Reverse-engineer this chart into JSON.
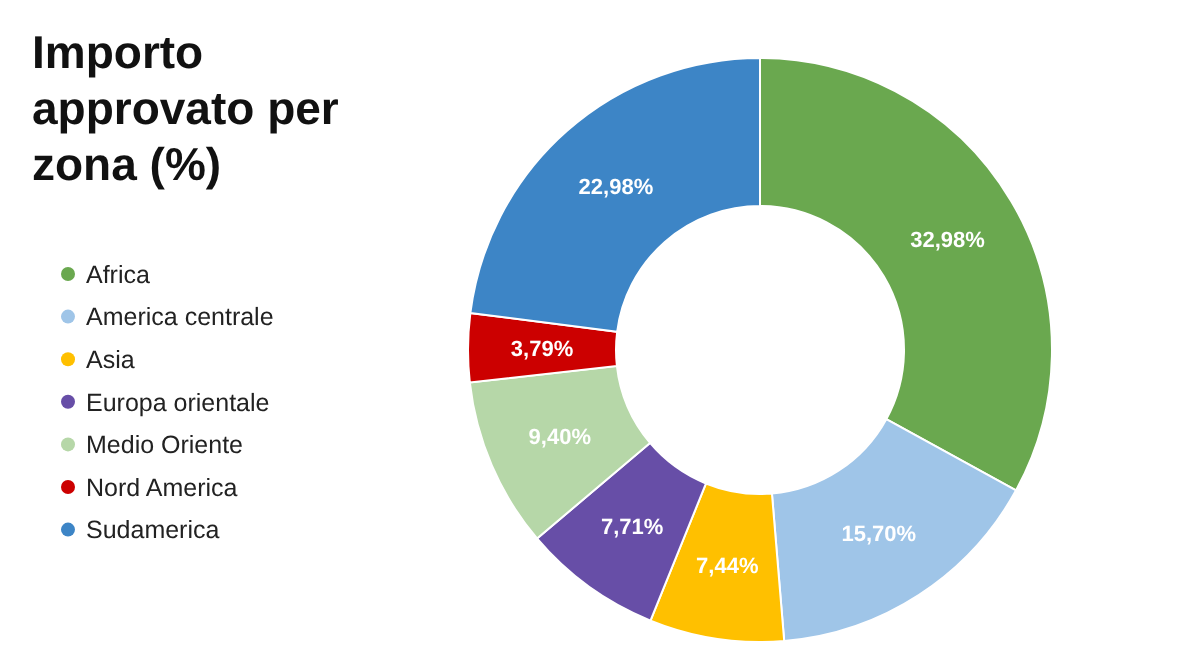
{
  "chart_data": {
    "type": "donut",
    "title": "Importo approvato per zona (%)",
    "categories": [
      "Africa",
      "America centrale",
      "Asia",
      "Europa orientale",
      "Medio Oriente",
      "Nord America",
      "Sudamerica"
    ],
    "values": [
      32.98,
      15.7,
      7.44,
      7.71,
      9.4,
      3.79,
      22.98
    ],
    "colors": [
      "#6aa84f",
      "#9fc5e8",
      "#ffc000",
      "#674ea7",
      "#b6d7a8",
      "#cc0000",
      "#3d85c6"
    ],
    "value_labels": [
      "32,98%",
      "15,70%",
      "7,44%",
      "7,71%",
      "9,40%",
      "3,79%",
      "22,98%"
    ],
    "legend": "left"
  }
}
